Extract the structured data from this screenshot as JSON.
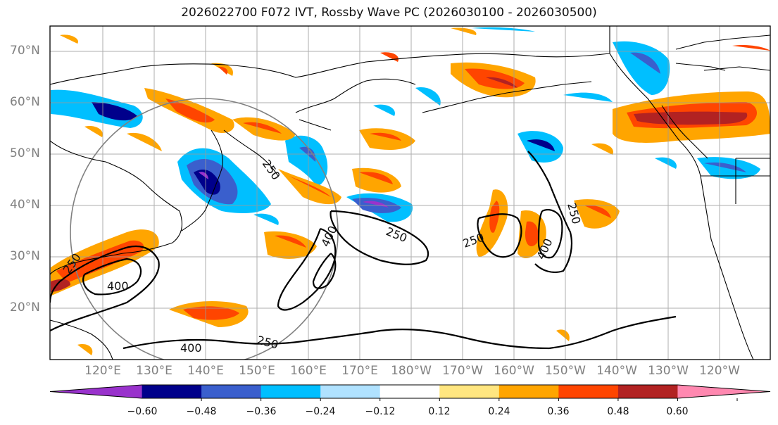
{
  "title": "2026022700 F072 IVT, Rossby Wave PC (2026030100 - 2026030500)",
  "lat_labels": [
    "70°N",
    "60°N",
    "50°N",
    "40°N",
    "30°N",
    "20°N"
  ],
  "lon_labels": [
    "120°E",
    "130°E",
    "140°E",
    "150°E",
    "160°E",
    "170°E",
    "180°W",
    "170°W",
    "160°W",
    "150°W",
    "140°W",
    "130°W",
    "120°W"
  ],
  "colorbar": {
    "ticks": [
      "−0.60",
      "−0.48",
      "−0.36",
      "−0.24",
      "−0.12",
      "0.12",
      "0.24",
      "0.36",
      "0.48",
      "0.60"
    ],
    "colors": [
      "#9932cc",
      "#00008b",
      "#3a5fcd",
      "#00bfff",
      "#b0e2ff",
      "#ffffff",
      "#ffe680",
      "#ffa500",
      "#ff4500",
      "#b22222",
      "#ff88b0"
    ]
  },
  "contour_labels": [
    "250",
    "250",
    "250",
    "250",
    "400",
    "400",
    "400",
    "400",
    "250",
    "250"
  ],
  "colors": {
    "neg_strong": "#9932cc",
    "neg_dark": "#00008b",
    "neg_mid": "#3a5fcd",
    "neg_light": "#00bfff",
    "neg_pale": "#b0e2ff",
    "pos_pale": "#ffe680",
    "pos_light": "#ffa500",
    "pos_mid": "#ff4500",
    "pos_dark": "#b22222"
  }
}
